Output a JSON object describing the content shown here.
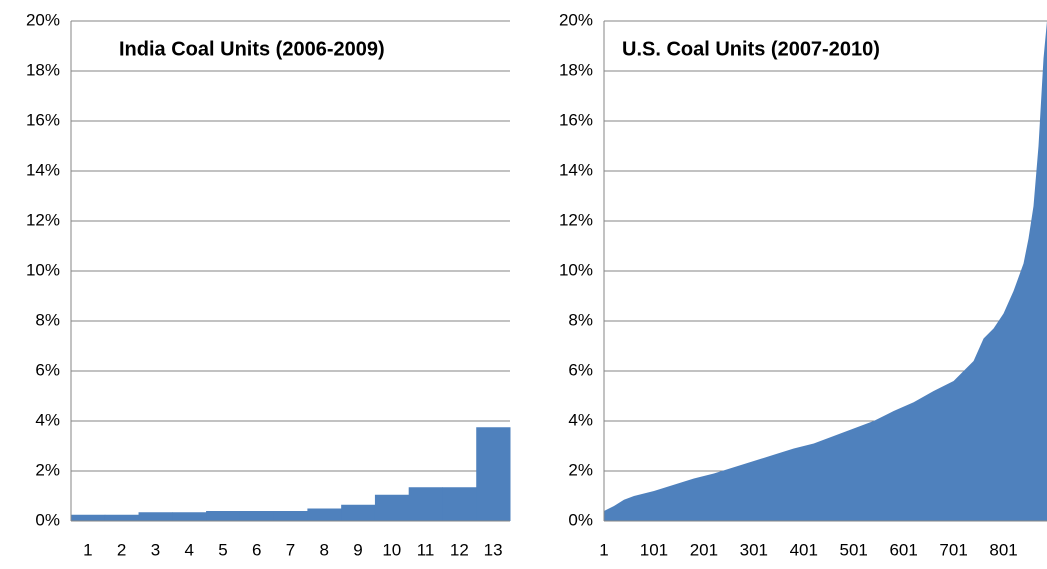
{
  "chart_data": [
    {
      "type": "bar",
      "title": "India Coal Units (2006-2009)",
      "categories": [
        "1",
        "2",
        "3",
        "4",
        "5",
        "6",
        "7",
        "8",
        "9",
        "10",
        "11",
        "12",
        "13"
      ],
      "values": [
        0.25,
        0.25,
        0.35,
        0.35,
        0.4,
        0.4,
        0.4,
        0.5,
        0.65,
        1.05,
        1.35,
        1.35,
        3.75
      ],
      "color": "#4f81bd",
      "ylim": [
        0,
        20
      ],
      "yticks": [
        {
          "value": 0,
          "label": "0%"
        },
        {
          "value": 2,
          "label": "2%"
        },
        {
          "value": 4,
          "label": "4%"
        },
        {
          "value": 6,
          "label": "6%"
        },
        {
          "value": 8,
          "label": "8%"
        },
        {
          "value": 10,
          "label": "10%"
        },
        {
          "value": 12,
          "label": "12%"
        },
        {
          "value": 14,
          "label": "14%"
        },
        {
          "value": 16,
          "label": "16%"
        },
        {
          "value": 18,
          "label": "18%"
        },
        {
          "value": 20,
          "label": "20%"
        }
      ],
      "grid": true
    },
    {
      "type": "area",
      "title": "U.S. Coal Units (2007-2010)",
      "x": [
        1,
        21,
        41,
        61,
        81,
        101,
        141,
        181,
        221,
        261,
        301,
        341,
        381,
        421,
        461,
        501,
        541,
        581,
        621,
        661,
        701,
        721,
        741,
        761,
        781,
        801,
        821,
        841,
        851,
        861,
        871,
        881,
        888
      ],
      "series": [
        {
          "color": "#4f81bd",
          "values": [
            0.4,
            0.6,
            0.85,
            1.0,
            1.1,
            1.2,
            1.45,
            1.7,
            1.9,
            2.15,
            2.4,
            2.65,
            2.9,
            3.1,
            3.4,
            3.7,
            4.0,
            4.4,
            4.75,
            5.2,
            5.6,
            6.0,
            6.4,
            7.3,
            7.7,
            8.3,
            9.2,
            10.3,
            11.3,
            12.6,
            15.0,
            18.5,
            20
          ]
        }
      ],
      "xlim": [
        1,
        888
      ],
      "xticks": [
        1,
        101,
        201,
        301,
        401,
        501,
        601,
        701,
        801
      ],
      "ylim": [
        0,
        20
      ],
      "yticks": [
        {
          "value": 0,
          "label": "0%"
        },
        {
          "value": 2,
          "label": "2%"
        },
        {
          "value": 4,
          "label": "4%"
        },
        {
          "value": 6,
          "label": "6%"
        },
        {
          "value": 8,
          "label": "8%"
        },
        {
          "value": 10,
          "label": "10%"
        },
        {
          "value": 12,
          "label": "12%"
        },
        {
          "value": 14,
          "label": "14%"
        },
        {
          "value": 16,
          "label": "16%"
        },
        {
          "value": 18,
          "label": "18%"
        },
        {
          "value": 20,
          "label": "20%"
        }
      ],
      "grid": true
    }
  ]
}
